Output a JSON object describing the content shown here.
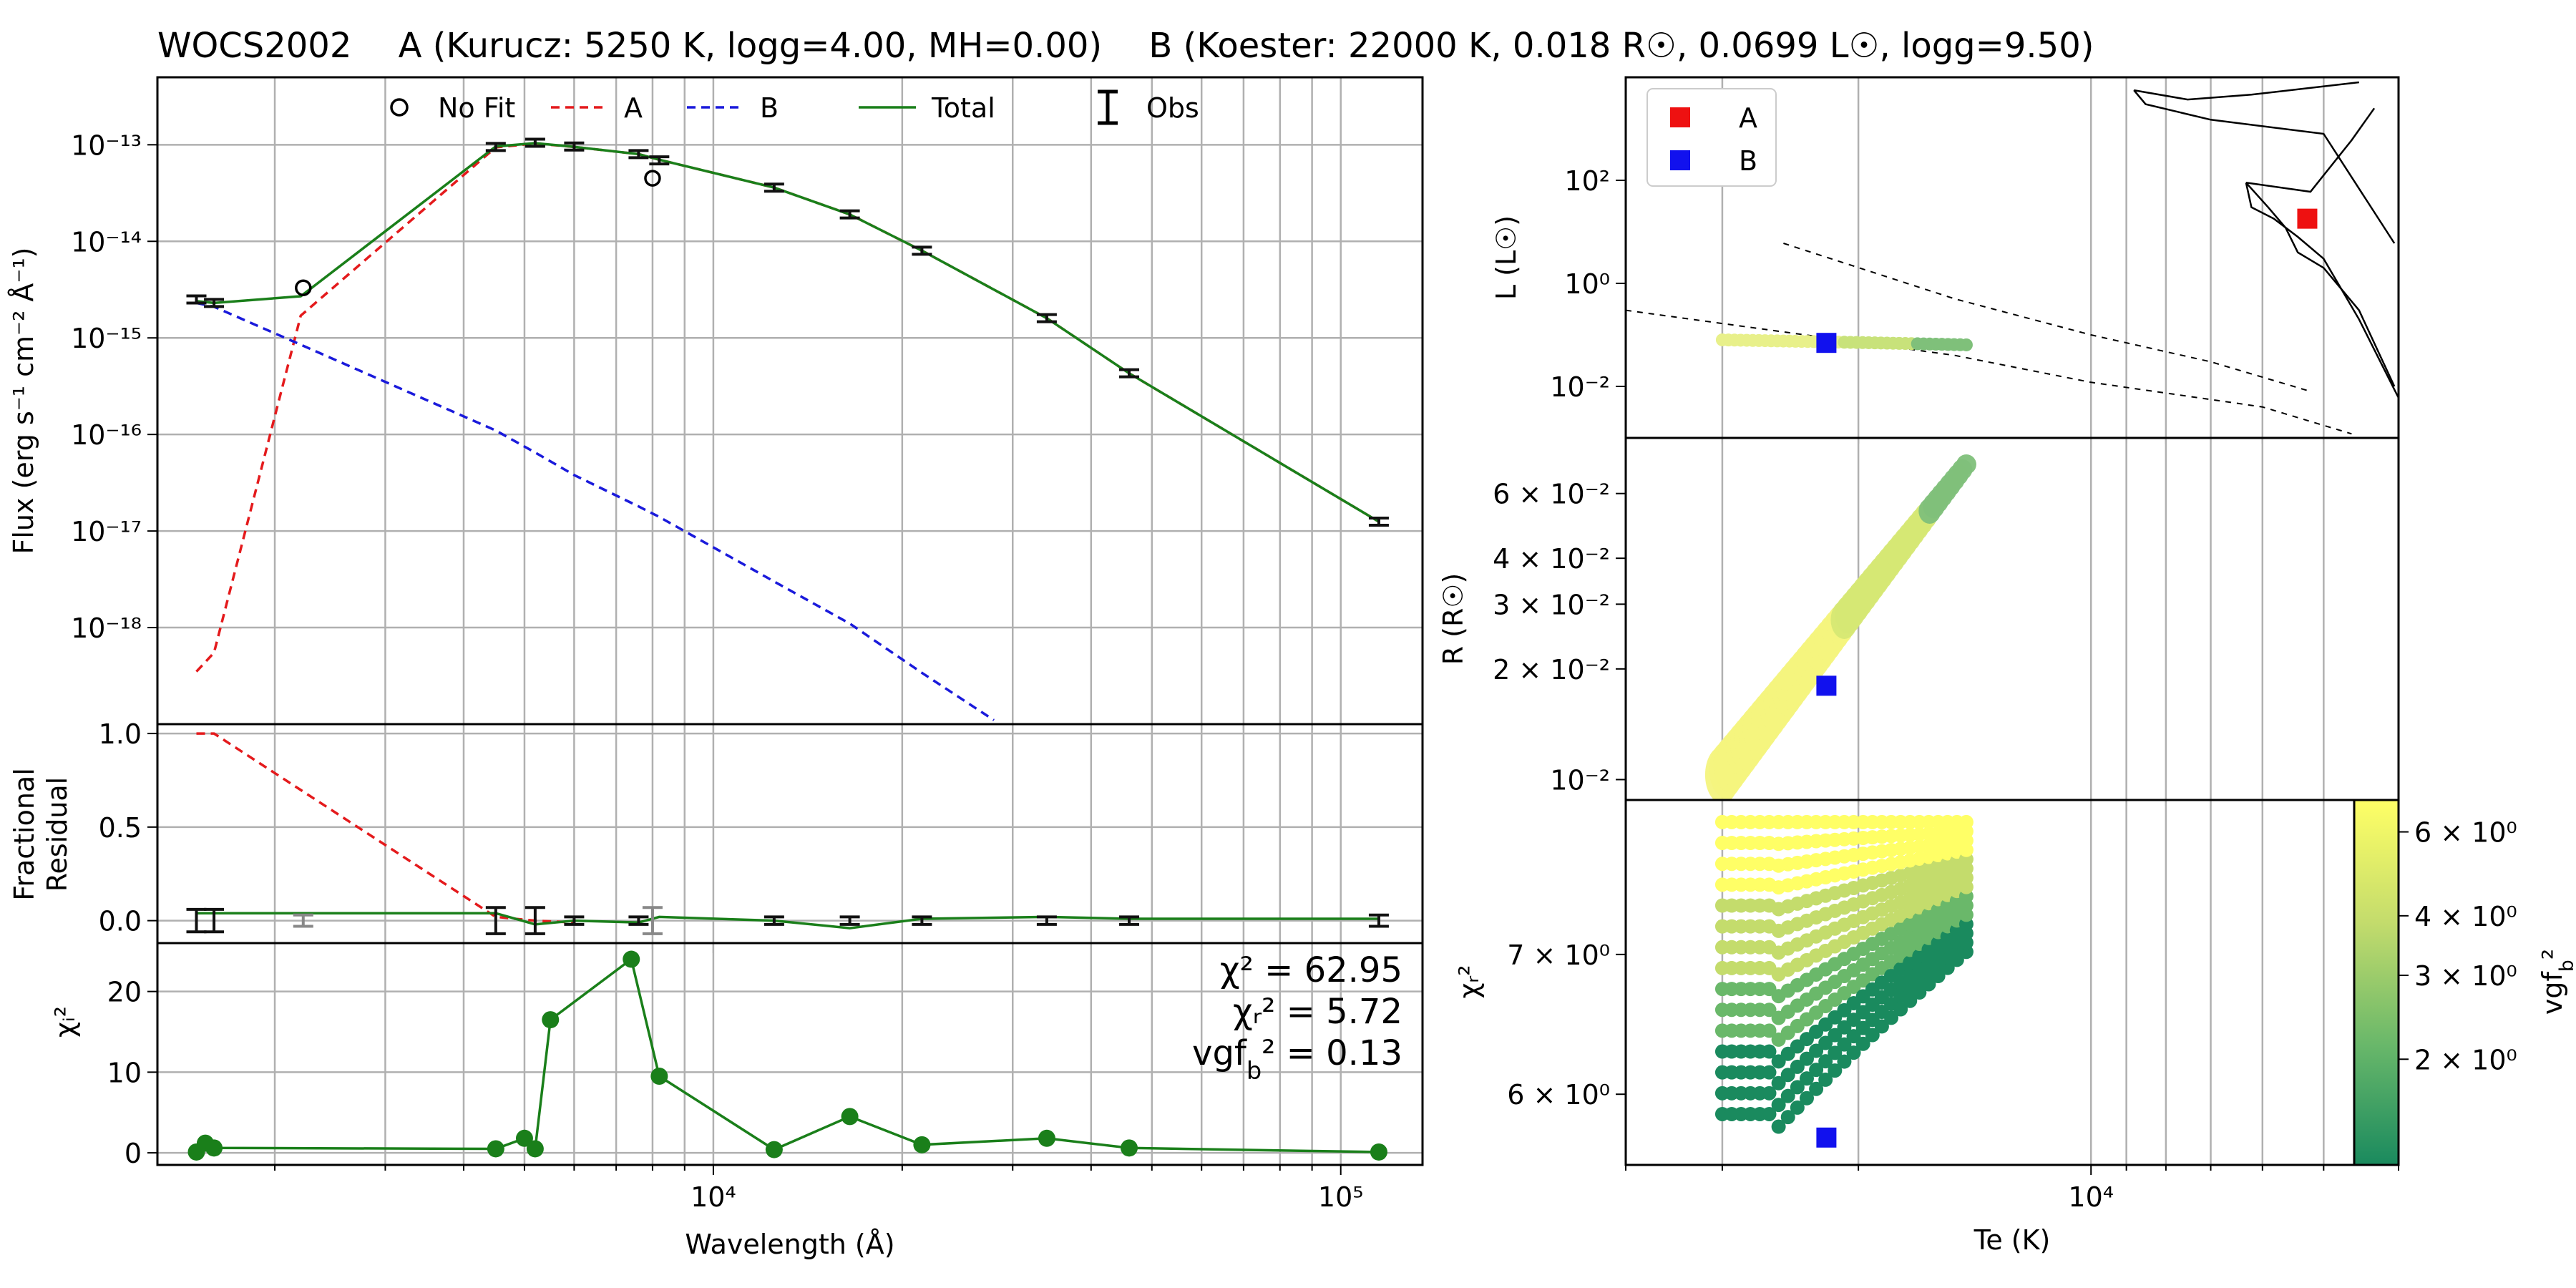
{
  "title": {
    "star": "WOCS2002",
    "component_a": "A (Kurucz: 5250 K, logg=4.00, MH=0.00)",
    "component_b": "B (Koester: 22000 K, 0.018 R☉, 0.0699 L☉, logg=9.50)"
  },
  "colors": {
    "component_a": "#e41a1c",
    "component_b": "#1a1adb",
    "total": "#1a7f1a",
    "obs": "#111111",
    "nofit": "#888888",
    "square_a": "#ee1111",
    "square_b": "#1111ee"
  },
  "chart_data": [
    {
      "id": "sed",
      "type": "line",
      "xlabel": "",
      "ylabel": "Flux (erg s⁻¹ cm⁻² Å⁻¹)",
      "xscale": "log",
      "yscale": "log",
      "xlim": [
        1300,
        135000
      ],
      "ylim": [
        1e-19,
        5e-13
      ],
      "grid": true,
      "legend": {
        "placement": "top",
        "entries": [
          {
            "label": "No Fit",
            "marker": "open-circle"
          },
          {
            "label": "A",
            "style": "dashed",
            "color": "component_a"
          },
          {
            "label": "B",
            "style": "dashed",
            "color": "component_b"
          },
          {
            "label": "Total",
            "style": "solid",
            "color": "total"
          },
          {
            "label": "Obs",
            "marker": "errorbar"
          }
        ]
      },
      "yticks": [
        {
          "label": "10⁻¹⁸",
          "value": 1e-18
        },
        {
          "label": "10⁻¹⁷",
          "value": 1e-17
        },
        {
          "label": "10⁻¹⁶",
          "value": 1e-16
        },
        {
          "label": "10⁻¹⁵",
          "value": 1e-15
        },
        {
          "label": "10⁻¹⁴",
          "value": 1e-14
        },
        {
          "label": "10⁻¹³",
          "value": 1e-13
        }
      ],
      "series": [
        {
          "name": "A",
          "x": [
            1500,
            1600,
            2200,
            4500,
            5200,
            6000,
            7600,
            8200,
            12500,
            16500,
            21500,
            34000,
            46000,
            115000
          ],
          "y": [
            3.5e-19,
            5.5e-19,
            1.7e-15,
            9.4e-14,
            1.03e-13,
            9.5e-14,
            8e-14,
            7e-14,
            3.6e-14,
            1.9e-14,
            8e-15,
            1.6e-15,
            4.3e-16,
            1.25e-17
          ]
        },
        {
          "name": "B",
          "x": [
            1500,
            1600,
            2200,
            4500,
            5200,
            6000,
            7600,
            8200,
            12500,
            16500,
            21500,
            28000
          ],
          "y": [
            2.3e-15,
            2.1e-15,
            8.5e-16,
            1.1e-16,
            6.5e-17,
            3.8e-17,
            1.8e-17,
            1.4e-17,
            3e-18,
            1.1e-18,
            3.4e-19,
            1.1e-19
          ]
        },
        {
          "name": "Total",
          "x": [
            1500,
            1600,
            2200,
            4500,
            5200,
            6000,
            7600,
            8200,
            12500,
            16500,
            21500,
            34000,
            46000,
            115000
          ],
          "y": [
            2.4e-15,
            2.3e-15,
            2.7e-15,
            9.6e-14,
            1.04e-13,
            9.5e-14,
            8e-14,
            7e-14,
            3.6e-14,
            1.9e-14,
            8e-15,
            1.6e-15,
            4.3e-16,
            1.25e-17
          ]
        }
      ],
      "obs": [
        {
          "x": 1500,
          "y": 2.5e-15
        },
        {
          "x": 1600,
          "y": 2.3e-15
        },
        {
          "x": 4500,
          "y": 9.5e-14
        },
        {
          "x": 5200,
          "y": 1.05e-13
        },
        {
          "x": 6000,
          "y": 9.6e-14
        },
        {
          "x": 7600,
          "y": 8e-14
        },
        {
          "x": 8200,
          "y": 6.9e-14
        },
        {
          "x": 12500,
          "y": 3.6e-14
        },
        {
          "x": 16500,
          "y": 1.9e-14
        },
        {
          "x": 21500,
          "y": 8e-15
        },
        {
          "x": 34000,
          "y": 1.6e-15
        },
        {
          "x": 46000,
          "y": 4.3e-16
        },
        {
          "x": 115000,
          "y": 1.25e-17
        }
      ],
      "nofit": [
        {
          "x": 2220,
          "y": 3.3e-15
        },
        {
          "x": 8000,
          "y": 4.5e-14
        }
      ]
    },
    {
      "id": "residual",
      "type": "line",
      "ylabel": "Fractional Residual",
      "xscale": "log",
      "xlim": [
        1300,
        135000
      ],
      "ylim": [
        -0.12,
        1.05
      ],
      "grid": true,
      "yticks": [
        {
          "label": "0.0",
          "value": 0.0
        },
        {
          "label": "0.5",
          "value": 0.5
        },
        {
          "label": "1.0",
          "value": 1.0
        }
      ],
      "series": [
        {
          "name": "A",
          "x": [
            1500,
            1600,
            4500,
            5200,
            6000
          ],
          "y": [
            1.0,
            1.0,
            0.02,
            0.0,
            -0.01
          ]
        },
        {
          "name": "Total",
          "x": [
            1500,
            1600,
            4500,
            5200,
            6000,
            7600,
            8200,
            12500,
            16500,
            21500,
            34000,
            46000,
            115000
          ],
          "y": [
            0.04,
            0.04,
            0.04,
            -0.02,
            0.0,
            -0.01,
            0.02,
            0.0,
            -0.04,
            0.01,
            0.02,
            0.01,
            0.01
          ]
        }
      ],
      "obs": [
        {
          "x": 1500,
          "y": 0.0,
          "err": 0.06
        },
        {
          "x": 1600,
          "y": 0.0,
          "err": 0.06
        },
        {
          "x": 4500,
          "y": 0.0,
          "err": 0.07
        },
        {
          "x": 5200,
          "y": 0.0,
          "err": 0.07
        },
        {
          "x": 6000,
          "y": 0.0,
          "err": 0.02
        },
        {
          "x": 7600,
          "y": 0.0,
          "err": 0.02
        },
        {
          "x": 12500,
          "y": 0.0,
          "err": 0.02
        },
        {
          "x": 16500,
          "y": 0.0,
          "err": 0.02
        },
        {
          "x": 21500,
          "y": 0.0,
          "err": 0.02
        },
        {
          "x": 34000,
          "y": 0.0,
          "err": 0.02
        },
        {
          "x": 46000,
          "y": 0.0,
          "err": 0.02
        },
        {
          "x": 115000,
          "y": 0.0,
          "err": 0.03
        }
      ],
      "nofit": [
        {
          "x": 2220,
          "y": 0.0,
          "err": 0.03
        },
        {
          "x": 8000,
          "y": 0.0,
          "err": 0.07
        }
      ]
    },
    {
      "id": "chi2",
      "type": "line",
      "xlabel": "Wavelength (Å)",
      "ylabel": "χᵢ²",
      "xscale": "log",
      "xlim": [
        1300,
        135000
      ],
      "ylim": [
        -1.5,
        26
      ],
      "grid": true,
      "yticks": [
        {
          "label": "0",
          "value": 0
        },
        {
          "label": "10",
          "value": 10
        },
        {
          "label": "20",
          "value": 20
        }
      ],
      "xticks": [
        {
          "label": "10⁴",
          "value": 10000
        },
        {
          "label": "10⁵",
          "value": 100000
        }
      ],
      "series": [
        {
          "name": "chi2_i",
          "x": [
            1500,
            1550,
            1600,
            4500,
            5000,
            5200,
            5500,
            7400,
            8200,
            12500,
            16500,
            21500,
            34000,
            46000,
            115000
          ],
          "y": [
            0.1,
            1.2,
            0.6,
            0.5,
            1.8,
            0.5,
            16.5,
            24.0,
            9.5,
            0.4,
            4.5,
            1.0,
            1.8,
            0.6,
            0.1
          ]
        }
      ],
      "annotations": [
        "χ² = 62.95",
        "χᵣ² = 5.72",
        "vgf_b² = 0.13"
      ]
    },
    {
      "id": "hrd",
      "type": "scatter",
      "ylabel": "L (L☉)",
      "xscale": "log",
      "yscale": "log",
      "xlim": [
        40000,
        4000
      ],
      "ylim": [
        0.001,
        10000
      ],
      "legend": {
        "placement": "top-left",
        "entries": [
          {
            "label": "A"
          },
          {
            "label": "B"
          }
        ]
      },
      "yticks": [
        {
          "label": "10⁻²",
          "value": 0.01
        },
        {
          "label": "10⁰",
          "value": 1
        },
        {
          "label": "10²",
          "value": 100
        }
      ],
      "points": [
        {
          "name": "A",
          "teff": 5250,
          "lum": 18
        },
        {
          "name": "B",
          "teff": 22000,
          "lum": 0.0699
        }
      ],
      "grid_band": {
        "teff_min": 14500,
        "teff_max": 30000,
        "lum": 0.08
      }
    },
    {
      "id": "radius",
      "type": "scatter",
      "ylabel": "R (R☉)",
      "xscale": "log",
      "yscale": "log",
      "xlim": [
        40000,
        4000
      ],
      "ylim": [
        0.0088,
        0.085
      ],
      "yticks": [
        {
          "label": "10⁻²",
          "value": 0.01
        },
        {
          "label": "2 × 10⁻²",
          "value": 0.02
        },
        {
          "label": "3 × 10⁻²",
          "value": 0.03
        },
        {
          "label": "4 × 10⁻²",
          "value": 0.04
        },
        {
          "label": "6 × 10⁻²",
          "value": 0.06
        }
      ],
      "points": [
        {
          "name": "B",
          "teff": 22000,
          "radius": 0.018
        }
      ],
      "grid_band": {
        "teff_min": 14500,
        "teff_max": 30000,
        "r_min": 0.0103,
        "r_max": 0.072
      }
    },
    {
      "id": "chi2map",
      "type": "scatter",
      "xlabel": "Te (K)",
      "ylabel": "χᵣ²",
      "xscale": "log",
      "yscale": "log",
      "xlim": [
        40000,
        4000
      ],
      "ylim": [
        5.55,
        8.3
      ],
      "yticks": [
        {
          "label": "6 × 10⁰",
          "value": 6
        },
        {
          "label": "7 × 10⁰",
          "value": 7
        }
      ],
      "xticks": [
        {
          "label": "10⁴",
          "value": 10000
        }
      ],
      "points": [
        {
          "name": "B",
          "teff": 22000,
          "chi2r": 5.72
        }
      ],
      "grid_band": {
        "teff_min": 14500,
        "teff_max": 30000,
        "chi_min": 5.72,
        "chi_max": 8.1
      },
      "colorbar": {
        "label": "vgf_b²",
        "scale": "log",
        "range": [
          1.2,
          7.0
        ],
        "colors": [
          "#1a8a5e",
          "#6ab86a",
          "#c4dc6c",
          "#ffff66"
        ],
        "ticks": [
          {
            "label": "2 × 10⁰",
            "value": 2
          },
          {
            "label": "3 × 10⁰",
            "value": 3
          },
          {
            "label": "4 × 10⁰",
            "value": 4
          },
          {
            "label": "6 × 10⁰",
            "value": 6
          }
        ]
      }
    }
  ]
}
